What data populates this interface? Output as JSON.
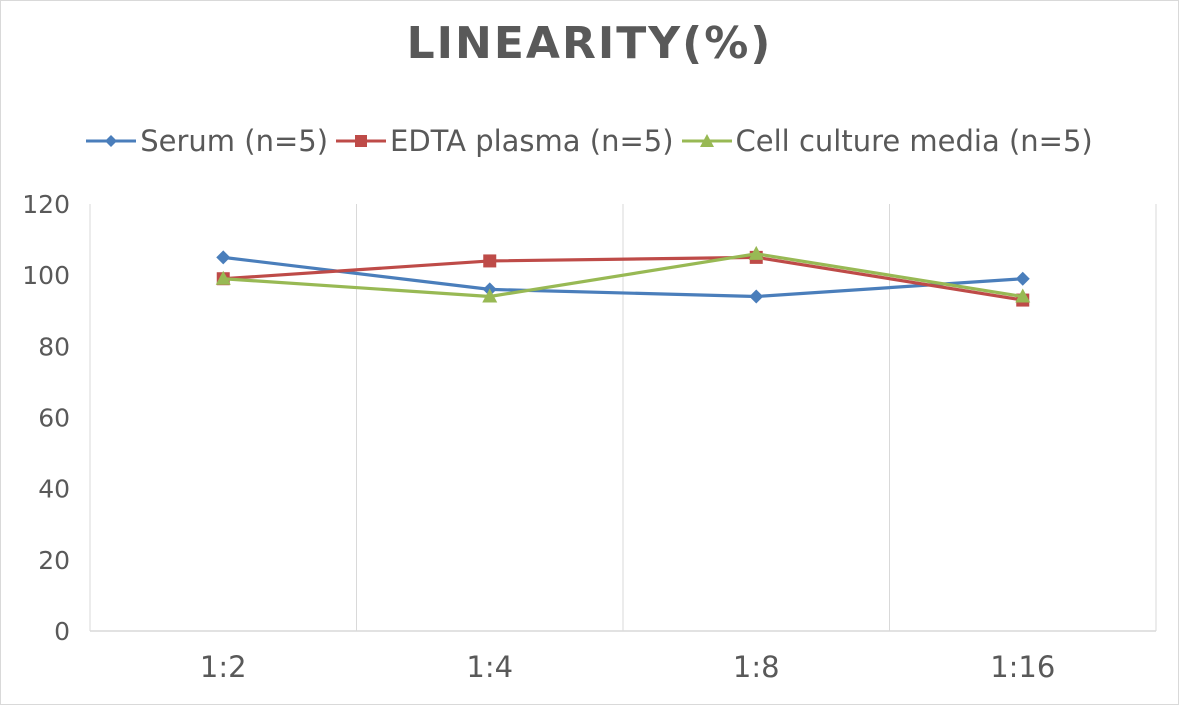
{
  "chart_data": {
    "type": "line",
    "title": "LINEARITY(%)",
    "xlabel": "",
    "ylabel": "",
    "categories": [
      "1:2",
      "1:4",
      "1:8",
      "1:16"
    ],
    "ylim": [
      0,
      120
    ],
    "yticks": [
      0,
      20,
      40,
      60,
      80,
      100,
      120
    ],
    "grid": "vertical",
    "legend_position": "top",
    "series": [
      {
        "name": "Serum (n=5)",
        "values": [
          105,
          96,
          94,
          99
        ],
        "color": "#4a7ebb",
        "marker": "diamond"
      },
      {
        "name": "EDTA plasma (n=5)",
        "values": [
          99,
          104,
          105,
          93
        ],
        "color": "#be4b48",
        "marker": "square"
      },
      {
        "name": "Cell culture media (n=5)",
        "values": [
          99,
          94,
          106,
          94
        ],
        "color": "#98b954",
        "marker": "triangle"
      }
    ]
  }
}
